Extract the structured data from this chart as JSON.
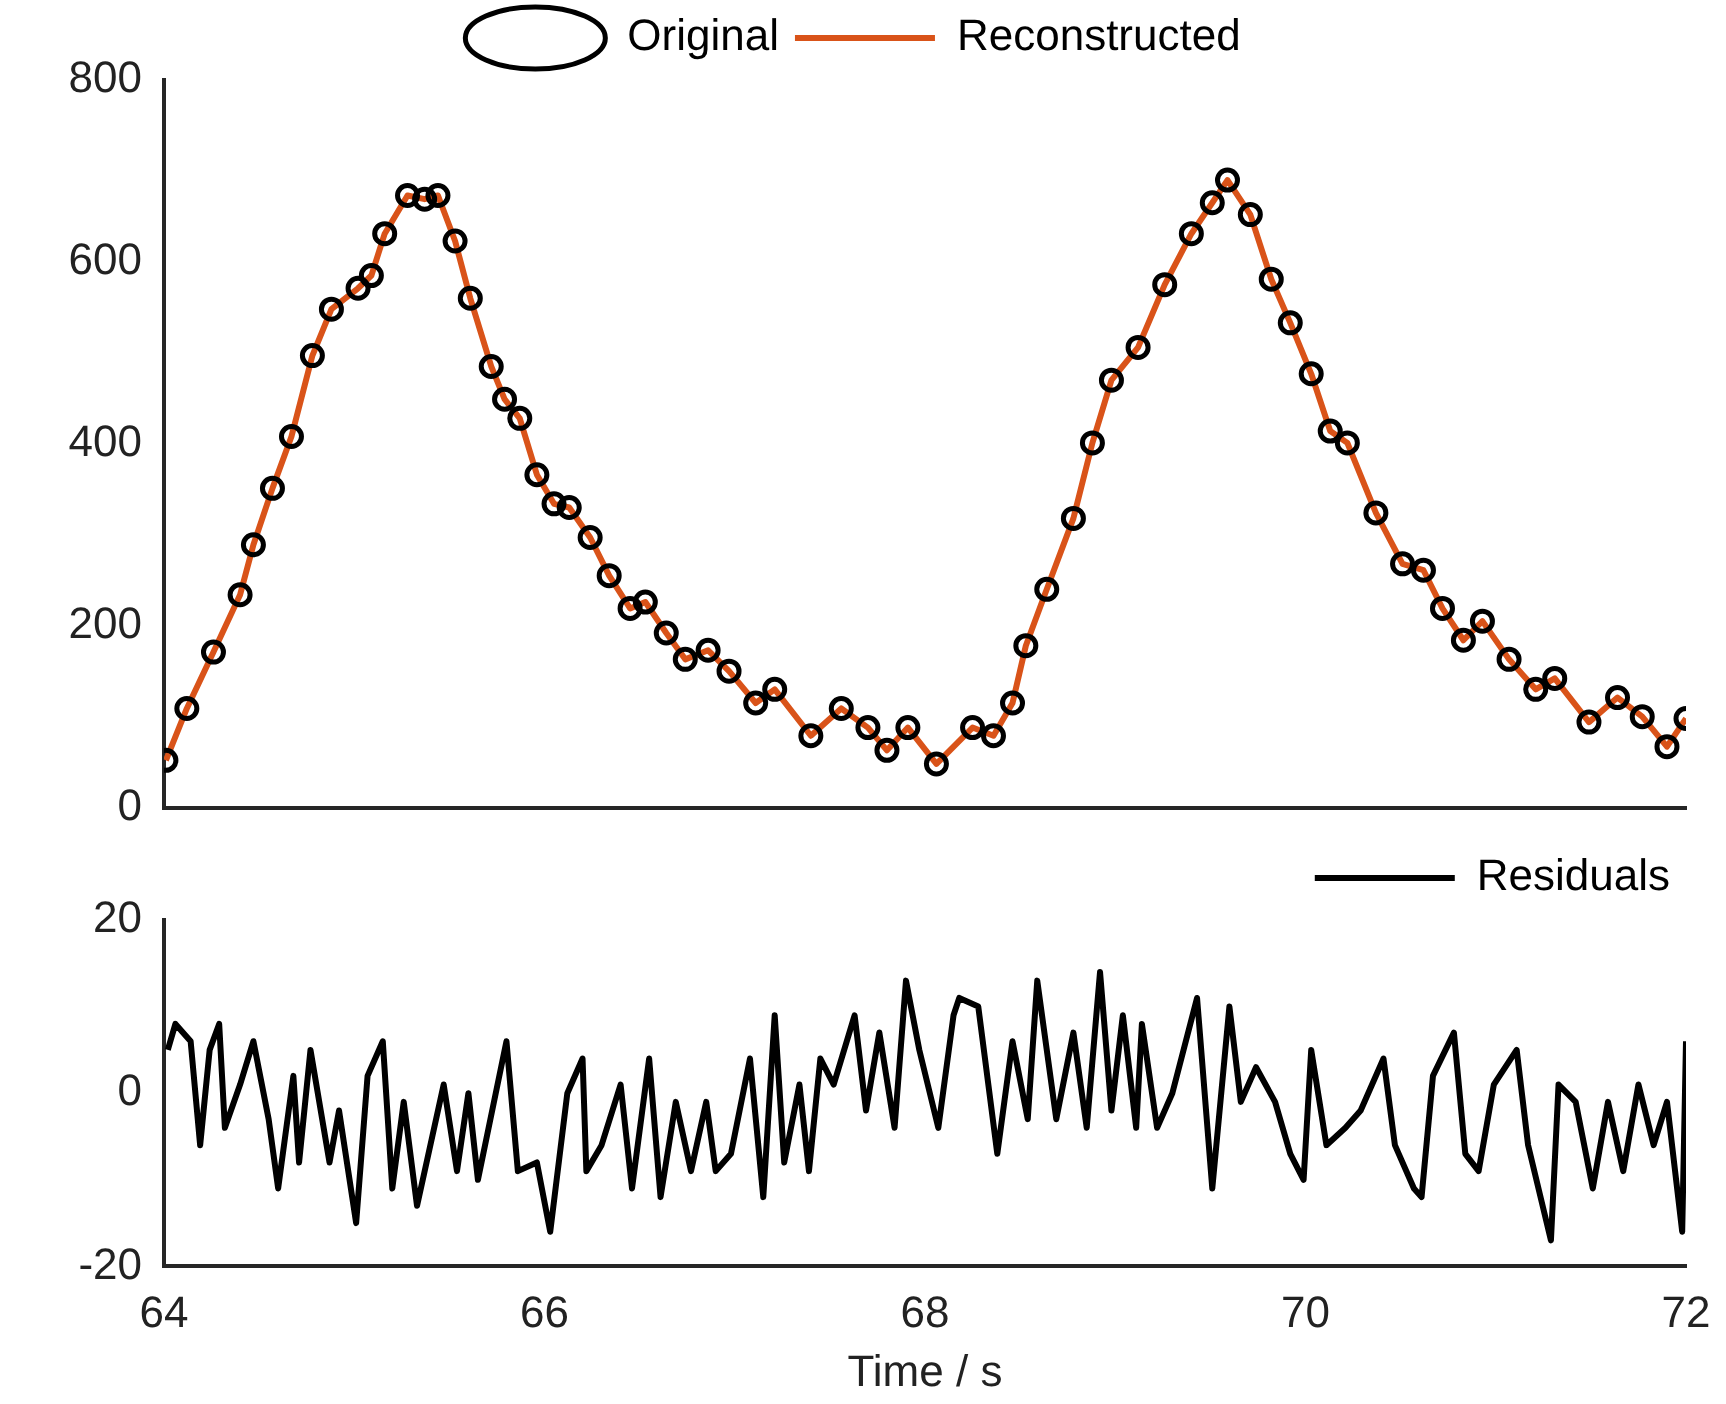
{
  "chart_data": [
    {
      "type": "line",
      "legend": "top",
      "grid": false,
      "tick_labels": "y",
      "xlim": [
        64,
        72
      ],
      "xticks": [
        64,
        66,
        68,
        70,
        72
      ],
      "ylim": [
        0,
        800
      ],
      "yticks": [
        0,
        200,
        400,
        600,
        800
      ],
      "x": [
        64.01,
        64.12,
        64.26,
        64.4,
        64.47,
        64.57,
        64.67,
        64.78,
        64.88,
        65.02,
        65.09,
        65.16,
        65.28,
        65.37,
        65.44,
        65.53,
        65.61,
        65.72,
        65.79,
        65.87,
        65.96,
        66.05,
        66.13,
        66.24,
        66.34,
        66.45,
        66.53,
        66.64,
        66.74,
        66.86,
        66.97,
        67.11,
        67.21,
        67.4,
        67.56,
        67.7,
        67.8,
        67.91,
        68.06,
        68.25,
        68.36,
        68.46,
        68.53,
        68.64,
        68.78,
        68.88,
        68.98,
        69.12,
        69.26,
        69.4,
        69.51,
        69.59,
        69.71,
        69.82,
        69.92,
        70.03,
        70.13,
        70.22,
        70.37,
        70.51,
        70.62,
        70.72,
        70.83,
        70.93,
        71.07,
        71.21,
        71.31,
        71.49,
        71.64,
        71.77,
        71.9,
        72.0
      ],
      "series": [
        {
          "name": "Original",
          "type": "scatter",
          "marker": "circle",
          "color": "#000000",
          "values": [
            52,
            109,
            171,
            234,
            289,
            351,
            408,
            497,
            548,
            571,
            585,
            631,
            673,
            669,
            673,
            623,
            560,
            485,
            449,
            428,
            366,
            334,
            330,
            297,
            255,
            219,
            226,
            192,
            163,
            173,
            150,
            115,
            130,
            79,
            109,
            88,
            63,
            88,
            48,
            88,
            79,
            115,
            178,
            240,
            318,
            401,
            470,
            506,
            575,
            631,
            665,
            690,
            652,
            581,
            533,
            477,
            414,
            401,
            324,
            268,
            261,
            219,
            184,
            205,
            163,
            130,
            142,
            94,
            121,
            100,
            67,
            98
          ]
        },
        {
          "name": "Reconstructed",
          "type": "line",
          "marker": "none",
          "line_style": "solid",
          "color": "#d95319",
          "values": [
            52,
            109,
            171,
            234,
            289,
            351,
            408,
            497,
            548,
            571,
            585,
            631,
            673,
            669,
            673,
            623,
            560,
            485,
            449,
            428,
            366,
            334,
            330,
            297,
            255,
            219,
            226,
            192,
            163,
            173,
            150,
            115,
            130,
            79,
            109,
            88,
            63,
            88,
            48,
            88,
            79,
            115,
            178,
            240,
            318,
            401,
            470,
            506,
            575,
            631,
            665,
            690,
            652,
            581,
            533,
            477,
            414,
            401,
            324,
            268,
            261,
            219,
            184,
            205,
            163,
            130,
            142,
            94,
            121,
            100,
            67,
            98
          ]
        }
      ]
    },
    {
      "type": "line",
      "legend": "top right",
      "grid": false,
      "xlabel": "Time / s",
      "xlim": [
        64,
        72
      ],
      "xticks": [
        64,
        66,
        68,
        70,
        72
      ],
      "ylim": [
        -20,
        20
      ],
      "yticks": [
        -20,
        0,
        20
      ],
      "x": [
        64.02,
        64.06,
        64.14,
        64.19,
        64.24,
        64.29,
        64.32,
        64.4,
        64.47,
        64.55,
        64.6,
        64.68,
        64.71,
        64.77,
        64.87,
        64.92,
        65.01,
        65.07,
        65.15,
        65.2,
        65.26,
        65.33,
        65.47,
        65.54,
        65.6,
        65.65,
        65.8,
        65.86,
        65.96,
        66.03,
        66.12,
        66.2,
        66.22,
        66.3,
        66.4,
        66.46,
        66.55,
        66.61,
        66.69,
        66.77,
        66.85,
        66.9,
        66.98,
        67.08,
        67.15,
        67.21,
        67.26,
        67.34,
        67.39,
        67.45,
        67.52,
        67.63,
        67.69,
        67.76,
        67.84,
        67.9,
        67.97,
        68.07,
        68.15,
        68.18,
        68.28,
        68.38,
        68.46,
        68.54,
        68.59,
        68.69,
        68.78,
        68.85,
        68.92,
        68.98,
        69.04,
        69.11,
        69.14,
        69.22,
        69.3,
        69.43,
        69.51,
        69.6,
        69.66,
        69.74,
        69.84,
        69.92,
        69.99,
        70.03,
        70.11,
        70.21,
        70.29,
        70.41,
        70.47,
        70.57,
        70.61,
        70.67,
        70.78,
        70.84,
        70.91,
        70.99,
        71.11,
        71.17,
        71.29,
        71.33,
        71.42,
        71.51,
        71.59,
        71.67,
        71.75,
        71.83,
        71.9,
        71.98,
        72.0
      ],
      "series": [
        {
          "name": "Residuals",
          "type": "line",
          "marker": "none",
          "line_style": "solid",
          "color": "#000000",
          "values": [
            5,
            8,
            6,
            -6,
            5,
            8,
            -4,
            1,
            6,
            -3,
            -11,
            2,
            -8,
            5,
            -8,
            -2,
            -15,
            2,
            6,
            -11,
            -1,
            -13,
            1,
            -9,
            0,
            -10,
            6,
            -9,
            -8,
            -16,
            0,
            4,
            -9,
            -6,
            1,
            -11,
            4,
            -12,
            -1,
            -9,
            -1,
            -9,
            -7,
            4,
            -12,
            9,
            -8,
            1,
            -9,
            4,
            1,
            9,
            -2,
            7,
            -4,
            13,
            5,
            -4,
            9,
            11,
            10,
            -7,
            6,
            -3,
            13,
            -3,
            7,
            -4,
            14,
            -2,
            9,
            -4,
            8,
            -4,
            0,
            11,
            -11,
            10,
            -1,
            3,
            -1,
            -7,
            -10,
            5,
            -6,
            -4,
            -2,
            4,
            -6,
            -11,
            -12,
            2,
            7,
            -7,
            -9,
            1,
            5,
            -6,
            -17,
            1,
            -1,
            -11,
            -1,
            -9,
            1,
            -6,
            -1,
            -16,
            6
          ]
        }
      ]
    }
  ]
}
